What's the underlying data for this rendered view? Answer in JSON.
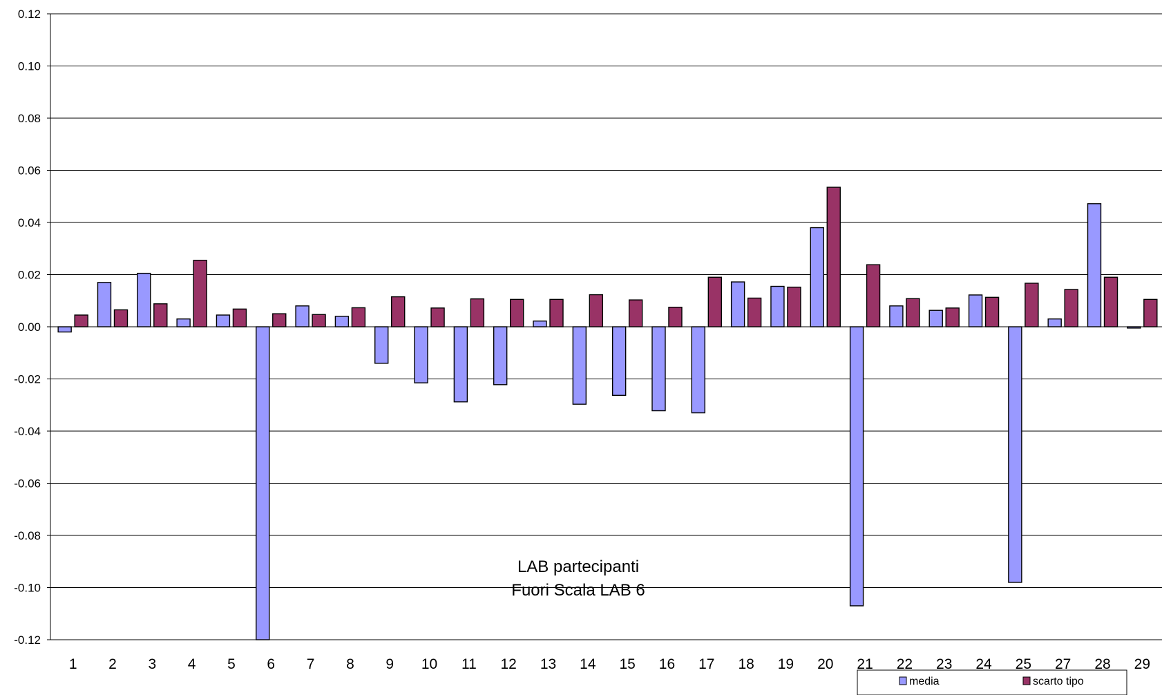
{
  "chart_data": {
    "type": "bar",
    "categories": [
      "1",
      "2",
      "3",
      "4",
      "5",
      "6",
      "7",
      "8",
      "9",
      "10",
      "11",
      "12",
      "13",
      "14",
      "15",
      "16",
      "17",
      "18",
      "19",
      "20",
      "21",
      "22",
      "23",
      "24",
      "25",
      "27",
      "28",
      "29"
    ],
    "series": [
      {
        "name": "media",
        "color": "#9999ff",
        "values": [
          -0.002,
          0.017,
          0.0205,
          0.003,
          0.0045,
          -0.122,
          0.008,
          0.004,
          -0.014,
          -0.0215,
          -0.0288,
          -0.0222,
          0.0022,
          -0.0297,
          -0.0263,
          -0.0322,
          -0.033,
          0.0172,
          0.0155,
          0.038,
          -0.107,
          0.008,
          0.0063,
          0.0122,
          -0.098,
          0.003,
          0.0472,
          -0.0005
        ]
      },
      {
        "name": "scarto tipo",
        "color": "#993366",
        "values": [
          0.0045,
          0.0065,
          0.0088,
          0.0255,
          0.0068,
          0.005,
          0.0047,
          0.0073,
          0.0115,
          0.0072,
          0.0107,
          0.0105,
          0.0105,
          0.0123,
          0.0103,
          0.0075,
          0.019,
          0.011,
          0.0152,
          0.0535,
          0.0238,
          0.0108,
          0.0072,
          0.0113,
          0.0167,
          0.0143,
          0.019,
          0.0105
        ]
      }
    ],
    "yticks": [
      "0.12",
      "0.10",
      "0.08",
      "0.06",
      "0.04",
      "0.02",
      "0.00",
      "-0.02",
      "-0.04",
      "-0.06",
      "-0.08",
      "-0.10",
      "-0.12"
    ],
    "ylim": [
      -0.12,
      0.12
    ],
    "grid": true,
    "legend_position": "bottom-right",
    "annotation": [
      "LAB partecipanti",
      "Fuori Scala LAB 6"
    ]
  }
}
